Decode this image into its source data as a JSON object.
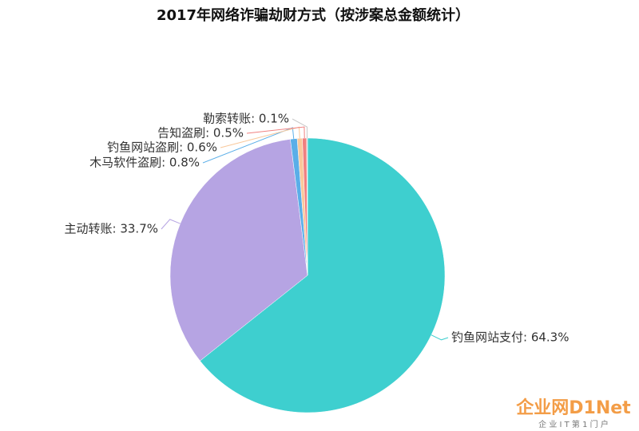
{
  "chart_data": {
    "type": "pie",
    "title": "2017年网络诈骗劫财方式（按涉案总金额统计）",
    "values": [
      64.3,
      33.7,
      0.8,
      0.6,
      0.5,
      0.1
    ],
    "value_labels": [
      "钓鱼网站支付: 64.3%",
      "主动转账: 33.7%",
      "木马软件盗刷: 0.8%",
      "钓鱼网站盗刷: 0.6%",
      "告知盗刷: 0.5%",
      "勒索转账: 0.1%"
    ],
    "colors": [
      "#3ecfcf",
      "#b6a4e3",
      "#5aaee8",
      "#f9c89b",
      "#f08080",
      "#c8c8c8"
    ]
  },
  "watermark": {
    "brand": "企业网D1Net",
    "tagline": "企 业 I T 第 1 门 户"
  }
}
